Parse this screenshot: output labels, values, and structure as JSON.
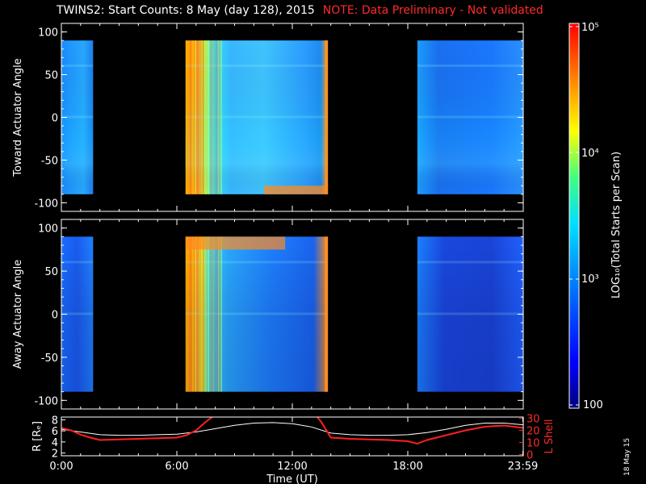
{
  "header": {
    "title": "TWINS2: Start Counts:  8 May (day 128), 2015",
    "note": "NOTE: Data Preliminary - Not validated"
  },
  "datestamp": "18 May 15",
  "colors": {
    "background": "#000000",
    "axis": "#ffffff",
    "note": "#ff2a2a",
    "data_gap": "#000000",
    "lshell_line": "#ff2020",
    "r_line": "#ffffff"
  },
  "colorbar": {
    "label_html": "LOG₁₀(Total Starts per Scan)",
    "tick_labels": [
      "10⁵",
      "10⁴",
      "10³",
      "100"
    ],
    "scale": "log",
    "range": [
      100,
      100000
    ],
    "colormap": "rainbow"
  },
  "chart_data": [
    {
      "type": "heatmap",
      "ylabel": "Toward Actuator Angle",
      "xlim": [
        0,
        24
      ],
      "ylim": [
        -110,
        110
      ],
      "yticks": [
        -100,
        -50,
        0,
        50,
        100
      ],
      "data_band": [
        -90,
        90
      ],
      "data_intervals_hours": [
        [
          0.0,
          1.65
        ],
        [
          6.45,
          13.85
        ],
        [
          18.5,
          23.98
        ]
      ],
      "dominant_level_log10": 3.0
    },
    {
      "type": "heatmap",
      "ylabel": "Away Actuator Angle",
      "xlim": [
        0,
        24
      ],
      "ylim": [
        -110,
        110
      ],
      "yticks": [
        -100,
        -50,
        0,
        50,
        100
      ],
      "data_band": [
        -90,
        90
      ],
      "data_intervals_hours": [
        [
          0.0,
          1.65
        ],
        [
          6.45,
          13.85
        ],
        [
          18.5,
          23.98
        ]
      ],
      "dominant_level_log10": 2.8
    },
    {
      "type": "line",
      "xlabel": "Time (UT)",
      "xlim": [
        0,
        24
      ],
      "x_tick_labels": [
        "0:00",
        "6:00",
        "12:00",
        "18:00",
        "23:59"
      ],
      "x_tick_values": [
        0,
        6,
        12,
        18,
        23.98
      ],
      "y_left_label": "R [Rₑ]",
      "y_left_ticks": [
        2,
        4,
        6,
        8
      ],
      "y_left_range": [
        1.5,
        8.5
      ],
      "y_right_label": "L Shell",
      "y_right_ticks": [
        0,
        10,
        20,
        30
      ],
      "y_right_range": [
        -1,
        31
      ],
      "series": [
        {
          "name": "R [Rₑ]",
          "axis": "left",
          "x": [
            0,
            1,
            2,
            3,
            4,
            5,
            6,
            7,
            8,
            9,
            10,
            11,
            12,
            13,
            14,
            15,
            16,
            17,
            18,
            19,
            20,
            21,
            22,
            23,
            24
          ],
          "y": [
            6.3,
            5.8,
            5.3,
            5.2,
            5.2,
            5.3,
            5.4,
            5.8,
            6.4,
            7.0,
            7.4,
            7.5,
            7.3,
            6.7,
            5.6,
            5.3,
            5.2,
            5.2,
            5.3,
            5.7,
            6.3,
            7.0,
            7.4,
            7.4,
            7.1
          ]
        },
        {
          "name": "L Shell",
          "axis": "right",
          "x": [
            0,
            0.5,
            1.0,
            1.5,
            2.0,
            3.0,
            4.0,
            5.0,
            6.0,
            6.5,
            7.0,
            7.5,
            8.0,
            13.2,
            13.5,
            14.0,
            15.0,
            16.0,
            17.0,
            18.0,
            18.5,
            19.0,
            20.0,
            21.0,
            22.0,
            23.0,
            24.0
          ],
          "y": [
            22,
            20,
            16.5,
            14,
            12,
            12.5,
            13,
            13.5,
            14,
            16,
            20,
            27,
            33,
            33,
            27,
            14,
            13,
            12.5,
            12,
            11,
            9,
            12,
            16,
            20,
            23,
            24,
            22
          ]
        }
      ]
    }
  ]
}
